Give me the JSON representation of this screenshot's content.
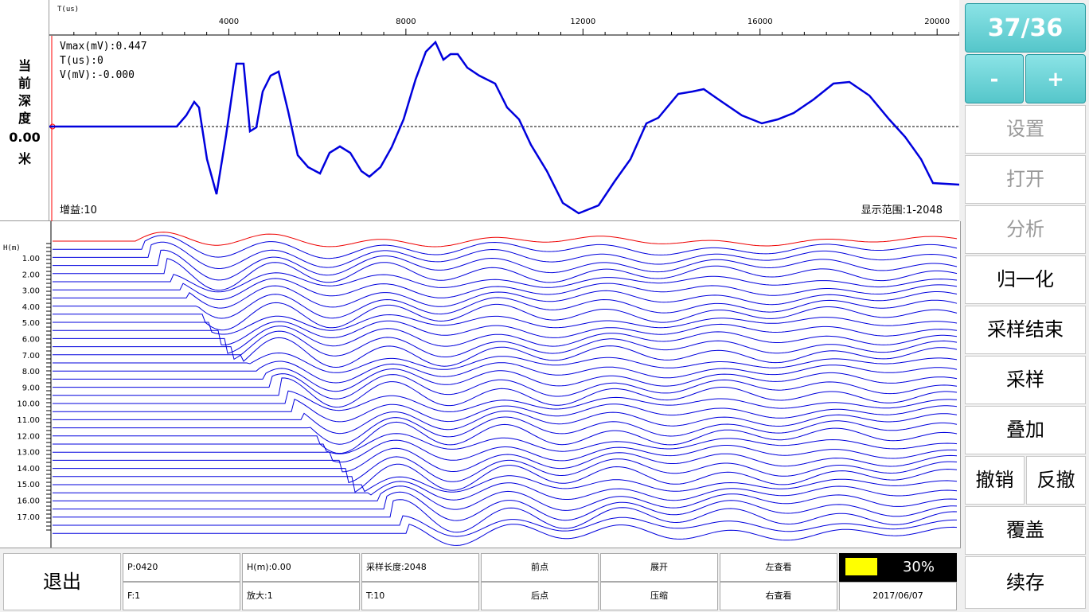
{
  "depth_panel": {
    "label": [
      "当",
      "前",
      "深",
      "度"
    ],
    "value": "0.00",
    "unit": "米"
  },
  "waveform": {
    "axis_title": "T(us)",
    "ticks": [
      "4000",
      "8000",
      "12000",
      "16000",
      "20000"
    ],
    "readout_vmax": "Vmax(mV):0.447",
    "readout_t": "T(us):0",
    "readout_v": "V(mV):-0.000",
    "gain": "增益:10",
    "display_range": "显示范围:1-2048"
  },
  "traces": {
    "axis_title": "H(m)",
    "depth_labels": [
      "1.00",
      "2.00",
      "3.00",
      "4.00",
      "5.00",
      "6.00",
      "7.00",
      "8.00",
      "9.00",
      "10.00",
      "11.00",
      "12.00",
      "13.00",
      "14.00",
      "15.00",
      "16.00",
      "17.00"
    ]
  },
  "controls": {
    "counter": "37/36",
    "minus": "-",
    "plus": "+",
    "settings": "设置",
    "open": "打开",
    "analyze": "分析",
    "normalize": "归一化",
    "end_sampling": "采样结束",
    "sample": "采样",
    "stack": "叠加",
    "undo": "撤销",
    "redo": "反撤",
    "overwrite": "覆盖",
    "save_continue": "续存"
  },
  "bottom": {
    "exit": "退出",
    "p": "P:0420",
    "h": "H(m):0.00",
    "sample_length": "采样长度:2048",
    "prev_point": "前点",
    "expand": "展开",
    "view_left": "左查看",
    "f": "F:1",
    "zoom": "放大:1",
    "t": "T:10",
    "next_point": "后点",
    "compress": "压缩",
    "view_right": "右查看",
    "date": "2017/06/07",
    "progress_text": "30%",
    "progress_value": 0.3
  },
  "colors": {
    "accent": "#55c6ca",
    "waveform": "#0000dd",
    "first_trace": "#ee0000",
    "progress": "#ffff00"
  }
}
